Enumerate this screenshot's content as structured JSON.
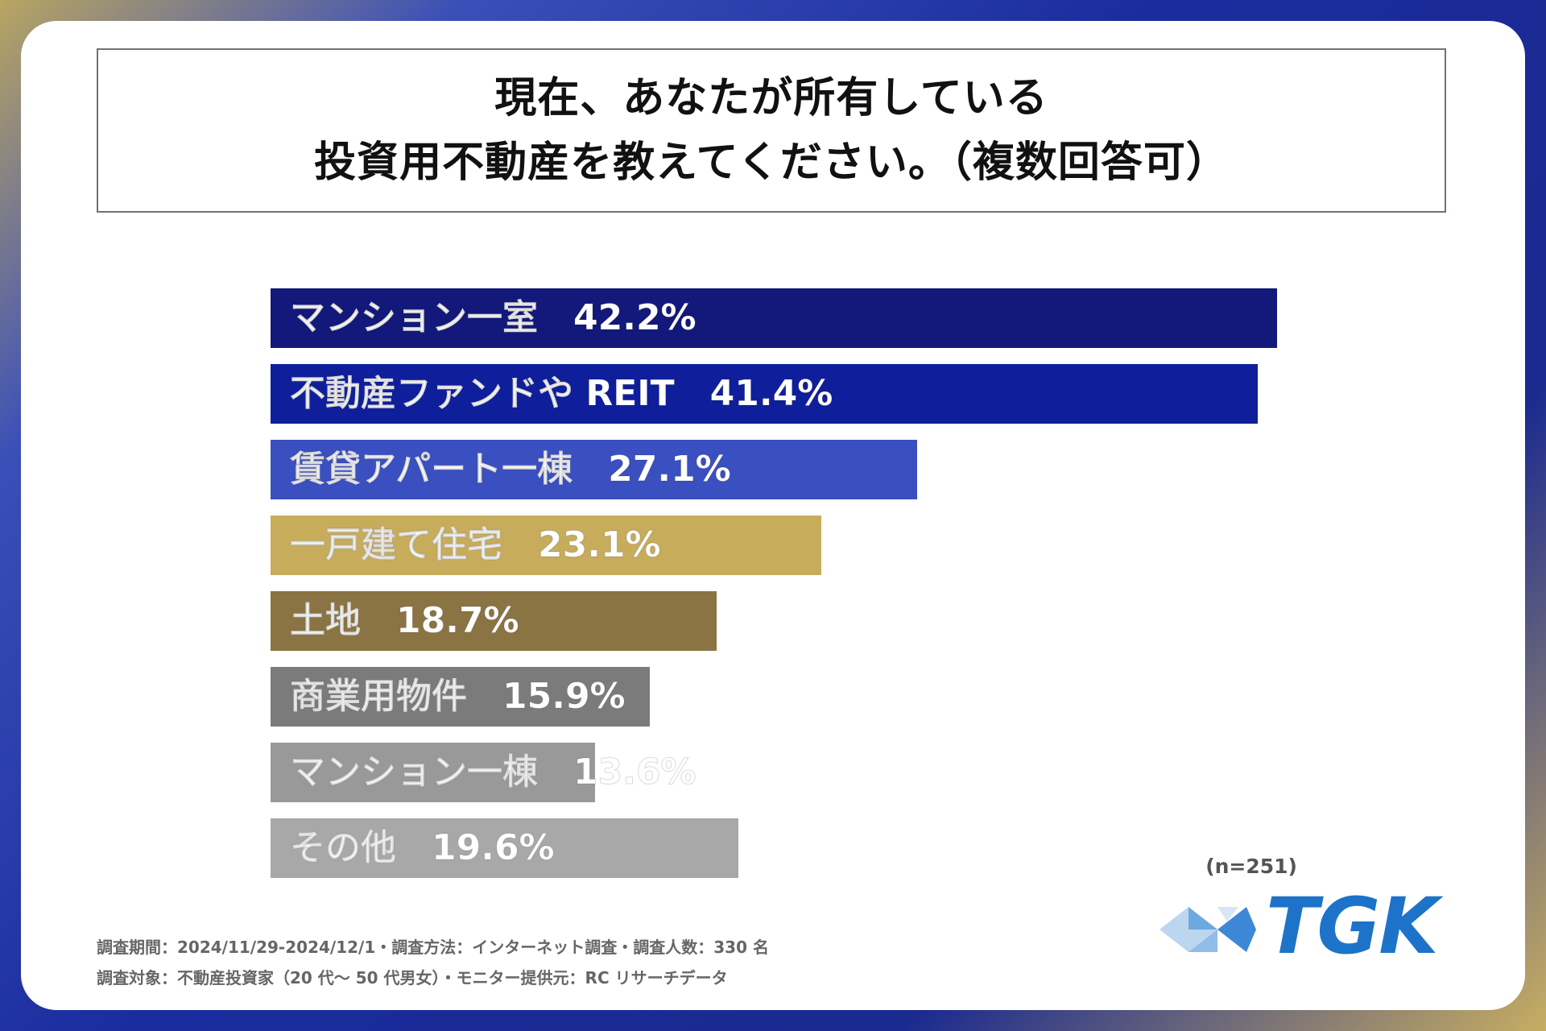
{
  "title": {
    "line1": "現在、あなたが所有している",
    "line2": "投資用不動産を教えてください。（複数回答可）"
  },
  "chart_data": {
    "type": "bar",
    "orientation": "horizontal",
    "categories": [
      "マンション一室",
      "不動産ファンドや REIT",
      "賃貸アパート一棟",
      "一戸建て住宅",
      "土地",
      "商業用物件",
      "マンション一棟",
      "その他"
    ],
    "values": [
      42.2,
      41.4,
      27.1,
      23.1,
      18.7,
      15.9,
      13.6,
      19.6
    ],
    "value_labels": [
      "42.2%",
      "41.4%",
      "27.1%",
      "23.1%",
      "18.7%",
      "15.9%",
      "13.6%",
      "19.6%"
    ],
    "colors": [
      "#13197a",
      "#0f1f9c",
      "#3a4fc0",
      "#c6ac5b",
      "#8b7443",
      "#7b7b7b",
      "#999999",
      "#a8a8a8"
    ],
    "xlim": [
      0,
      42.2
    ],
    "title": "現在、あなたが所有している投資用不動産を教えてください。（複数回答可）"
  },
  "note": "(n=251)",
  "footer": {
    "line1": "調査期間：2024/11/29-2024/12/1・調査方法：インターネット調査・調査人数：330 名",
    "line2": "調査対象：不動産投資家（20 代～ 50 代男女）・モニター提供元：RC リサーチデータ"
  },
  "logo": {
    "text": "TGK",
    "color": "#1d73c9"
  }
}
